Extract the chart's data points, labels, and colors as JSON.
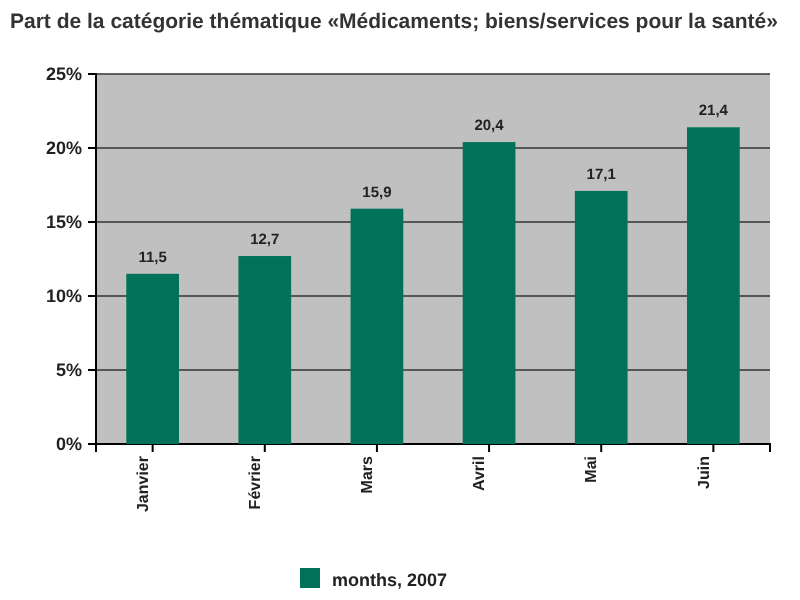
{
  "chart_data": {
    "type": "bar",
    "title": "Part de la catégorie thématique «Médicaments; biens/services pour la santé»",
    "categories": [
      "Janvier",
      "Février",
      "Mars",
      "Avril",
      "Mai",
      "Juin"
    ],
    "series": [
      {
        "name": "months, 2007",
        "color": "#00725a",
        "values": [
          11.5,
          12.7,
          15.9,
          20.4,
          17.1,
          21.4
        ],
        "value_labels": [
          "11,5",
          "12,7",
          "15,9",
          "20,4",
          "17,1",
          "21,4"
        ]
      }
    ],
    "ylim": [
      0,
      25
    ],
    "yticks": [
      {
        "value": 0,
        "label": "0%"
      },
      {
        "value": 5,
        "label": "5%"
      },
      {
        "value": 10,
        "label": "10%"
      },
      {
        "value": 15,
        "label": "15%"
      },
      {
        "value": 20,
        "label": "20%"
      },
      {
        "value": 25,
        "label": "25%"
      }
    ],
    "grid": "y",
    "legend": "bottom"
  }
}
